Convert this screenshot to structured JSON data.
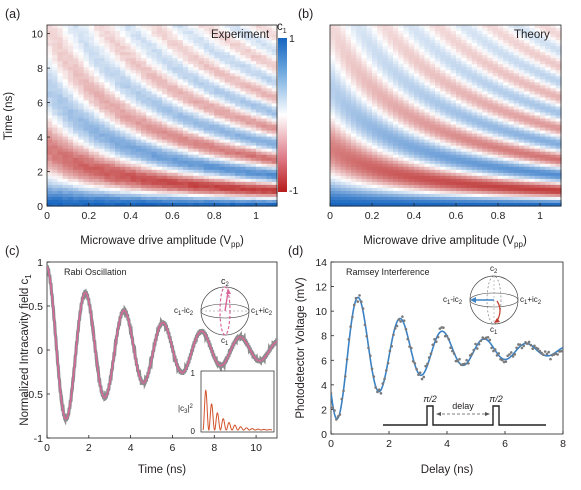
{
  "chart_data": [
    {
      "type": "heatmap",
      "panel_label": "(a)",
      "title": "Experiment",
      "xlabel": "Microwave drive amplitude (V",
      "xlabel_sub": "pp",
      "ylabel": "Time (ns)",
      "xlim": [
        0,
        1.1
      ],
      "ylim": [
        0,
        10.5
      ],
      "xticks": [
        "0",
        "0.2",
        "0.4",
        "0.6",
        "0.8",
        "1"
      ],
      "yticks": [
        "0",
        "2",
        "4",
        "6",
        "8",
        "10"
      ],
      "model": "c1 = cos(2πf·t)·exp(-γ·t), f rising with drive amplitude"
    },
    {
      "type": "heatmap",
      "panel_label": "(b)",
      "title": "Theory",
      "xlabel": "Microwave drive amplitude (V",
      "xlabel_sub": "pp",
      "xlim": [
        0,
        1.1
      ],
      "ylim": [
        0,
        10.5
      ],
      "xticks": [
        "0",
        "0.2",
        "0.4",
        "0.6",
        "0.8",
        "1"
      ],
      "yticks": [
        "0",
        "2",
        "4",
        "6",
        "8",
        "10"
      ],
      "colorbar": {
        "label": "c",
        "label_sub": "1",
        "max_label": "1",
        "min_label": "-1",
        "colors": [
          "#1565c0",
          "#ffffff",
          "#b71c1c"
        ]
      }
    },
    {
      "type": "line",
      "panel_label": "(c)",
      "annotation": "Rabi Oscillation",
      "xlabel": "Time (ns)",
      "ylabel": "Normalized Intracavity field c",
      "ylabel_sub": "1",
      "xlim": [
        0,
        11
      ],
      "ylim": [
        -1,
        1
      ],
      "xticks": [
        "0",
        "2",
        "4",
        "6",
        "8",
        "10"
      ],
      "yticks": [
        "-1",
        "-0.5",
        "0",
        "0.5",
        "1"
      ],
      "series": [
        {
          "role": "experiment",
          "color": "#8c8c8c",
          "model": {
            "f": 0.54,
            "phase": 0,
            "gamma": 0.2,
            "amp": 0.94
          }
        },
        {
          "role": "theory",
          "color": "#d9669a",
          "model": {
            "f": 0.54,
            "phase": 0,
            "gamma": 0.2,
            "amp": 0.94
          }
        }
      ],
      "bloch": {
        "top": "c",
        "top_sub": "2",
        "left": "c",
        "left_sub": "1",
        "left_mid": "-ic",
        "left_sub2": "2",
        "right": "c",
        "right_sub": "1",
        "right_mid": "+ic",
        "right_sub2": "2",
        "bottom": "c",
        "bottom_sub": "1"
      },
      "inset": {
        "ylabel": "|c",
        "ylabel_sub": "3",
        "ylabel_end": "|",
        "ylabel_sup": "2",
        "yticks": [
          "0",
          "1"
        ],
        "color": "#d2532b"
      }
    },
    {
      "type": "scatter",
      "panel_label": "(d)",
      "annotation": "Ramsey Interference",
      "xlabel": "Delay (ns)",
      "ylabel": "Photodetector Voltage (mV)",
      "xlim": [
        0,
        8
      ],
      "ylim": [
        0,
        14
      ],
      "xticks": [
        "0",
        "2",
        "4",
        "6",
        "8"
      ],
      "yticks": [
        "0",
        "2",
        "4",
        "6",
        "8",
        "10",
        "12",
        "14"
      ],
      "series": [
        {
          "role": "data",
          "color": "#7a7a7a"
        },
        {
          "role": "fit",
          "color": "#3b82c4",
          "model": {
            "offset": 6.8,
            "amp": 6.0,
            "gamma": 0.35,
            "period": 1.45,
            "start": 0.35
          }
        }
      ],
      "pulse_labels": [
        "π/2",
        "π/2"
      ],
      "delay_label": "delay",
      "bloch": {
        "top": "c",
        "top_sub": "2",
        "left": "c",
        "left_sub": "1",
        "left_mid": "-ic",
        "left_sub2": "2",
        "right": "c",
        "right_sub": "1",
        "right_mid": "+ic",
        "right_sub2": "2",
        "bottom": "c",
        "bottom_sub": "1"
      }
    }
  ]
}
